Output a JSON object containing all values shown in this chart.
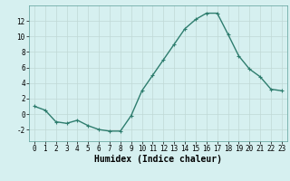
{
  "x": [
    0,
    1,
    2,
    3,
    4,
    5,
    6,
    7,
    8,
    9,
    10,
    11,
    12,
    13,
    14,
    15,
    16,
    17,
    18,
    19,
    20,
    21,
    22,
    23
  ],
  "y": [
    1.0,
    0.5,
    -1.0,
    -1.2,
    -0.8,
    -1.5,
    -2.0,
    -2.2,
    -2.2,
    -0.2,
    3.0,
    5.0,
    7.0,
    9.0,
    11.0,
    12.2,
    13.0,
    13.0,
    10.3,
    7.5,
    5.8,
    4.8,
    3.2,
    3.0
  ],
  "line_color": "#2e7d6e",
  "marker": "+",
  "marker_size": 3,
  "line_width": 1.0,
  "xlabel": "Humidex (Indice chaleur)",
  "xlabel_fontsize": 7,
  "xlim": [
    -0.5,
    23.5
  ],
  "ylim": [
    -3.5,
    14.0
  ],
  "yticks": [
    -2,
    0,
    2,
    4,
    6,
    8,
    10,
    12
  ],
  "xticks": [
    0,
    1,
    2,
    3,
    4,
    5,
    6,
    7,
    8,
    9,
    10,
    11,
    12,
    13,
    14,
    15,
    16,
    17,
    18,
    19,
    20,
    21,
    22,
    23
  ],
  "bg_color": "#d6f0f0",
  "grid_color": "#c0d8d5",
  "tick_fontsize": 5.5,
  "spine_color": "#5a9e98"
}
